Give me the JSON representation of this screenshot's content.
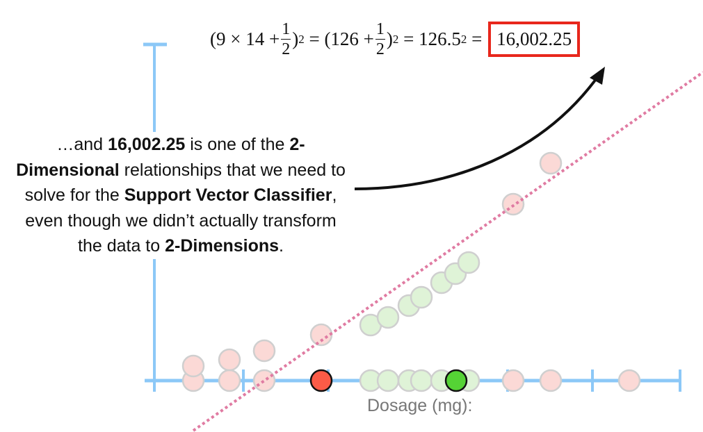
{
  "equation": {
    "part1_open": "(9 × 14 + ",
    "frac_num": "1",
    "frac_den": "2",
    "close": ")",
    "exp": "2",
    "eq": " = ",
    "part2_open": "(126 + ",
    "part3_base": "126.5",
    "result": "16,002.25"
  },
  "note": {
    "t1": "…and ",
    "b1": "16,002.25",
    "t2": " is one of the ",
    "b2": "2-Dimensional",
    "t3": " relationships that we need to solve for the ",
    "b3": "Support Vector Classifier",
    "t4": ", even though we didn’t actually transform the data to ",
    "b4": "2-Dimensions",
    "t5": "."
  },
  "axis": {
    "xlabel": "Dosage (mg):"
  },
  "colors": {
    "axis": "#8cc8f7",
    "pink_point": "#fbd9d6",
    "green_point": "#dff3d7",
    "highlight_red": "#fb5b47",
    "highlight_green": "#55d335",
    "classifier_line": "#e07ba2",
    "result_box": "#e8271c"
  }
}
